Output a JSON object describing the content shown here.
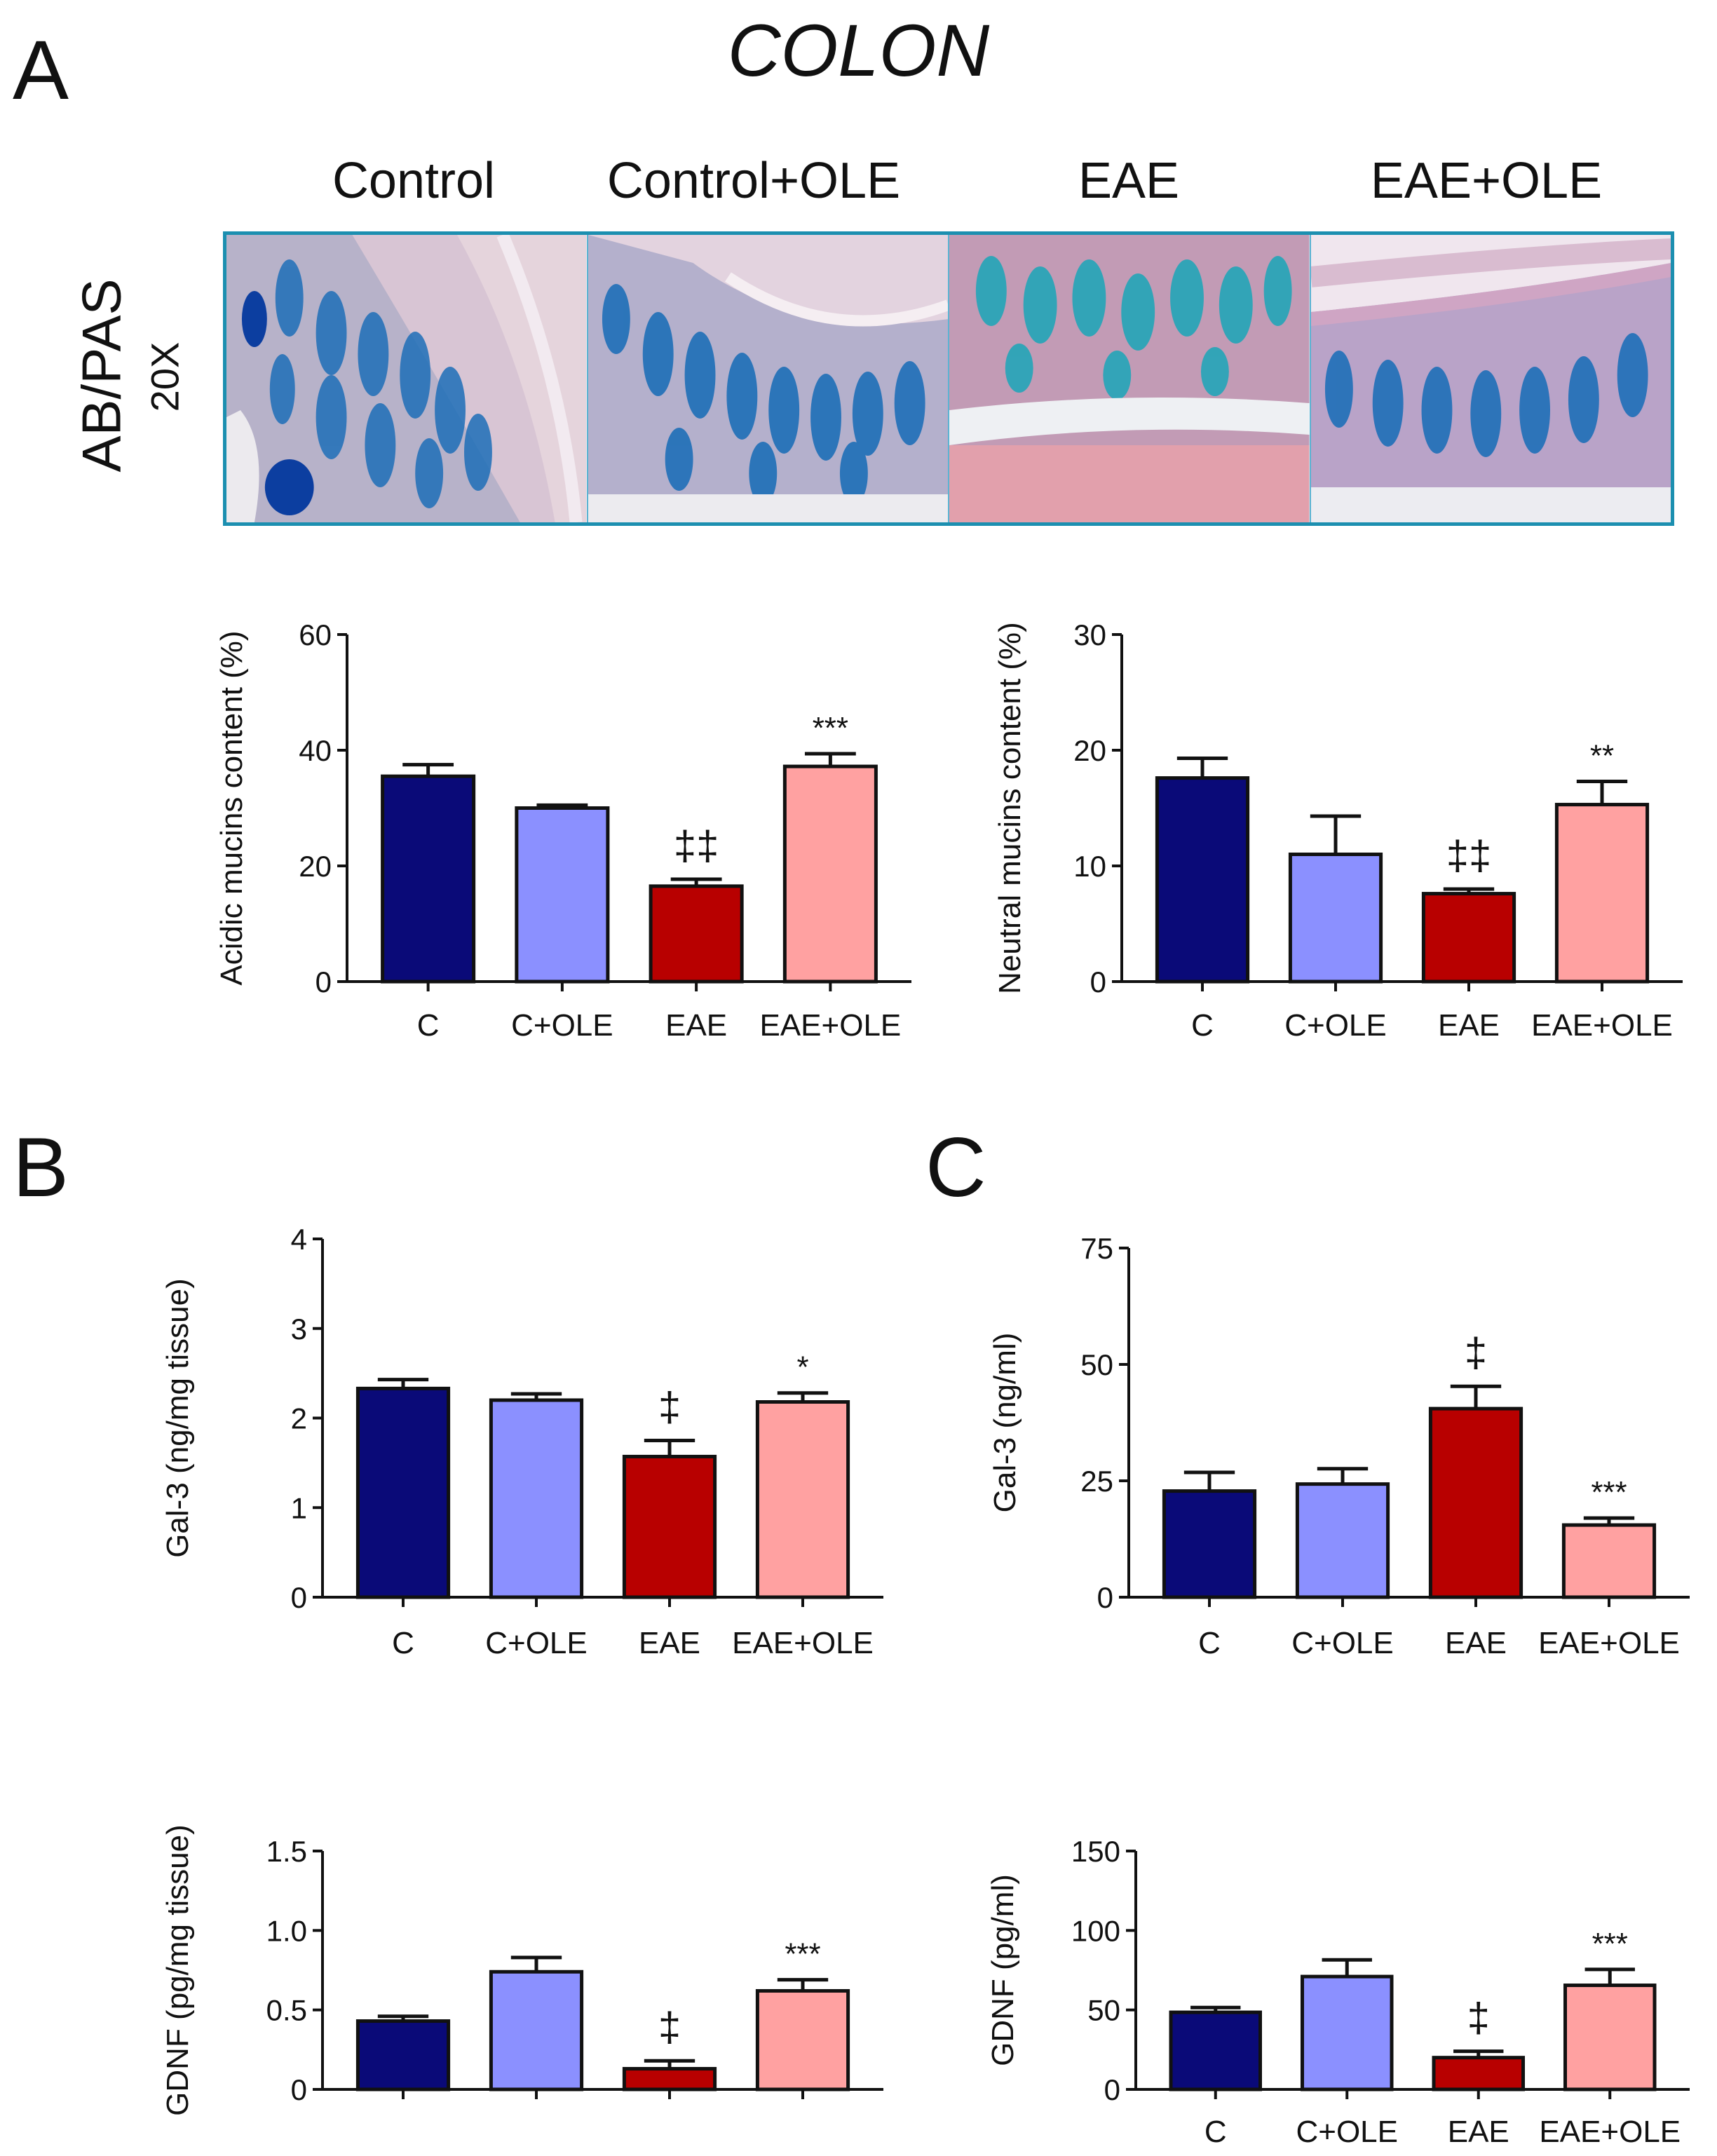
{
  "figure": {
    "title": "COLON",
    "panels": {
      "a": "A",
      "b": "B",
      "c": "C"
    },
    "histology": {
      "stain_label": "AB/PAS",
      "magnification": "20X",
      "columns": [
        "Control",
        "Control+OLE",
        "EAE",
        "EAE+OLE"
      ]
    }
  },
  "colors": {
    "C": "#0a0a78",
    "C+OLE": "#8b90ff",
    "EAE": "#b80000",
    "EAE+OLE": "#ffa1a1"
  },
  "chart_data": [
    {
      "id": "acidic",
      "type": "bar",
      "ylabel": "Acidic mucins content (%)",
      "categories": [
        "C",
        "C+OLE",
        "EAE",
        "EAE+OLE"
      ],
      "values": [
        35.5,
        30,
        16.5,
        37.2
      ],
      "errors": [
        2,
        0.5,
        1.2,
        2.2
      ],
      "annotations": [
        "",
        "",
        "‡‡",
        "***"
      ],
      "ylim": [
        0,
        60
      ],
      "yticks": [
        "0",
        "20",
        "40",
        "60"
      ]
    },
    {
      "id": "neutral",
      "type": "bar",
      "ylabel": "Neutral mucins content (%)",
      "categories": [
        "C",
        "C+OLE",
        "EAE",
        "EAE+OLE"
      ],
      "values": [
        17.6,
        11,
        7.6,
        15.3
      ],
      "errors": [
        1.7,
        3.3,
        0.4,
        2
      ],
      "annotations": [
        "",
        "",
        "‡‡",
        "**"
      ],
      "ylim": [
        0,
        30
      ],
      "yticks": [
        "0",
        "10",
        "20",
        "30"
      ]
    },
    {
      "id": "gal3_tissue",
      "type": "bar",
      "ylabel": "Gal-3 (ng/mg tissue)",
      "categories": [
        "C",
        "C+OLE",
        "EAE",
        "EAE+OLE"
      ],
      "values": [
        2.33,
        2.2,
        1.57,
        2.18
      ],
      "errors": [
        0.1,
        0.07,
        0.18,
        0.1
      ],
      "annotations": [
        "",
        "",
        "‡",
        "*"
      ],
      "ylim": [
        0,
        4
      ],
      "yticks": [
        "0",
        "1",
        "2",
        "3",
        "4"
      ]
    },
    {
      "id": "gal3_serum",
      "type": "bar",
      "ylabel": "Gal-3 (ng/ml)",
      "categories": [
        "C",
        "C+OLE",
        "EAE",
        "EAE+OLE"
      ],
      "values": [
        22.8,
        24.3,
        40.5,
        15.5
      ],
      "errors": [
        4,
        3.3,
        4.8,
        1.5
      ],
      "annotations": [
        "",
        "",
        "‡",
        "***"
      ],
      "ylim": [
        0,
        75
      ],
      "yticks": [
        "0",
        "25",
        "50",
        "75"
      ]
    },
    {
      "id": "gdnf_tissue",
      "type": "bar",
      "ylabel": "GDNF (pg/mg tissue)",
      "categories": [
        "",
        "",
        "",
        ""
      ],
      "values": [
        0.43,
        0.74,
        0.13,
        0.62
      ],
      "errors": [
        0.03,
        0.09,
        0.05,
        0.07
      ],
      "annotations": [
        "",
        "",
        "‡",
        "***"
      ],
      "ylim": [
        0,
        1.5
      ],
      "yticks": [
        "0",
        "0.5",
        "1.0",
        "1.5"
      ]
    },
    {
      "id": "gdnf_serum",
      "type": "bar",
      "ylabel": "GDNF (pg/ml)",
      "categories": [
        "C",
        "C+OLE",
        "EAE",
        "EAE+OLE"
      ],
      "values": [
        48.5,
        71,
        20,
        65.5
      ],
      "errors": [
        3,
        10.5,
        4,
        10
      ],
      "annotations": [
        "",
        "",
        "‡",
        "***"
      ],
      "ylim": [
        0,
        150
      ],
      "yticks": [
        "0",
        "50",
        "100",
        "150"
      ]
    }
  ]
}
